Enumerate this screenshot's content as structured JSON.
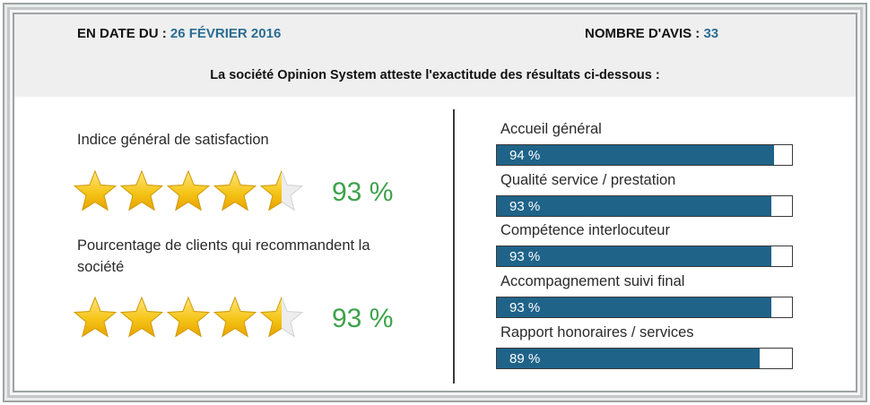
{
  "header": {
    "date_label": "EN DATE DU : ",
    "date_value": "26 FÉVRIER 2016",
    "count_label": "NOMBRE D'AVIS : ",
    "count_value": "33",
    "attestation": "La société Opinion System atteste l'exactitude des résultats ci-dessous :"
  },
  "metrics": [
    {
      "label": "Indice général de satisfaction",
      "percent_text": "93 %",
      "stars": 4.5,
      "star_max": 5
    },
    {
      "label": "Pourcentage de clients qui recommandent la société",
      "percent_text": "93 %",
      "stars": 4.5,
      "star_max": 5
    }
  ],
  "criteria": [
    {
      "label": "Accueil général",
      "value": 94,
      "text": "94 %"
    },
    {
      "label": "Qualité service / prestation",
      "value": 93,
      "text": "93 %"
    },
    {
      "label": "Compétence interlocuteur",
      "value": 93,
      "text": "93 %"
    },
    {
      "label": "Accompagnement suivi final",
      "value": 93,
      "text": "93 %"
    },
    {
      "label": "Rapport honoraires / services",
      "value": 89,
      "text": "89 %"
    }
  ],
  "colors": {
    "accent_blue": "#2b6d93",
    "bar_fill": "#1f6389",
    "percent_green": "#3da24a",
    "star_fill": "#f5c518"
  },
  "icons": {
    "rating": "star-icon"
  }
}
